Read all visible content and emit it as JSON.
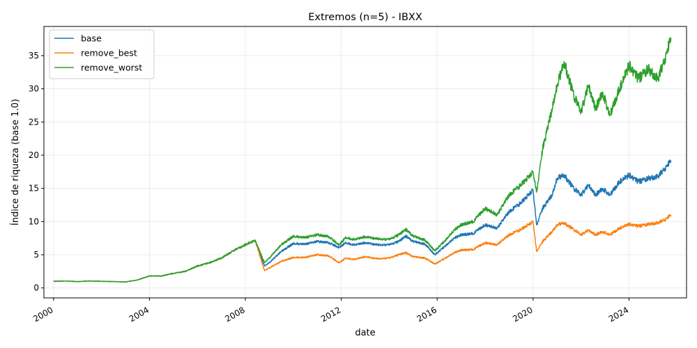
{
  "chart_data": {
    "type": "line",
    "title": "Extremos (n=5) - IBXX",
    "xlabel": "date",
    "ylabel": "Índice de riqueza (base 1.0)",
    "xlim": [
      1999.6,
      2026.4
    ],
    "ylim": [
      -1.5,
      39.4
    ],
    "xticks": [
      2000,
      2004,
      2008,
      2012,
      2016,
      2020,
      2024
    ],
    "xtick_labels": [
      "2000",
      "2004",
      "2008",
      "2012",
      "2016",
      "2020",
      "2024"
    ],
    "yticks": [
      0,
      5,
      10,
      15,
      20,
      25,
      30,
      35
    ],
    "ytick_labels": [
      "0",
      "5",
      "10",
      "15",
      "20",
      "25",
      "30",
      "35"
    ],
    "grid": true,
    "legend_position": "top-left",
    "series": [
      {
        "name": "base",
        "color": "#1f77b4",
        "points": [
          [
            2000.0,
            1.0
          ],
          [
            2000.5,
            1.05
          ],
          [
            2001.0,
            0.95
          ],
          [
            2001.5,
            1.05
          ],
          [
            2002.0,
            1.0
          ],
          [
            2002.5,
            0.95
          ],
          [
            2003.0,
            0.9
          ],
          [
            2003.5,
            1.2
          ],
          [
            2004.0,
            1.8
          ],
          [
            2004.5,
            1.8
          ],
          [
            2005.0,
            2.2
          ],
          [
            2005.5,
            2.5
          ],
          [
            2006.0,
            3.3
          ],
          [
            2006.5,
            3.8
          ],
          [
            2007.0,
            4.5
          ],
          [
            2007.5,
            5.6
          ],
          [
            2008.0,
            6.5
          ],
          [
            2008.4,
            7.2
          ],
          [
            2008.8,
            3.3
          ],
          [
            2009.0,
            3.8
          ],
          [
            2009.5,
            5.5
          ],
          [
            2010.0,
            6.7
          ],
          [
            2010.5,
            6.6
          ],
          [
            2011.0,
            7.0
          ],
          [
            2011.5,
            6.8
          ],
          [
            2011.9,
            6.1
          ],
          [
            2012.2,
            6.8
          ],
          [
            2012.5,
            6.5
          ],
          [
            2013.0,
            6.8
          ],
          [
            2013.5,
            6.5
          ],
          [
            2014.0,
            6.5
          ],
          [
            2014.4,
            7.0
          ],
          [
            2014.7,
            7.8
          ],
          [
            2015.0,
            7.0
          ],
          [
            2015.5,
            6.6
          ],
          [
            2015.9,
            5.0
          ],
          [
            2016.3,
            6.2
          ],
          [
            2016.7,
            7.5
          ],
          [
            2017.0,
            8.0
          ],
          [
            2017.5,
            8.2
          ],
          [
            2018.0,
            9.5
          ],
          [
            2018.5,
            9.0
          ],
          [
            2019.0,
            11.5
          ],
          [
            2019.5,
            12.8
          ],
          [
            2020.0,
            14.8
          ],
          [
            2020.15,
            9.5
          ],
          [
            2020.4,
            12.0
          ],
          [
            2020.8,
            14.0
          ],
          [
            2021.0,
            16.5
          ],
          [
            2021.3,
            17.0
          ],
          [
            2021.7,
            15.0
          ],
          [
            2022.0,
            14.0
          ],
          [
            2022.3,
            15.5
          ],
          [
            2022.6,
            14.0
          ],
          [
            2022.9,
            15.0
          ],
          [
            2023.2,
            14.0
          ],
          [
            2023.6,
            16.0
          ],
          [
            2024.0,
            17.0
          ],
          [
            2024.4,
            16.0
          ],
          [
            2024.8,
            16.5
          ],
          [
            2025.2,
            16.8
          ],
          [
            2025.5,
            18.0
          ],
          [
            2025.75,
            19.2
          ]
        ]
      },
      {
        "name": "remove_best",
        "color": "#ff7f0e",
        "points": [
          [
            2000.0,
            1.0
          ],
          [
            2000.5,
            1.05
          ],
          [
            2001.0,
            0.95
          ],
          [
            2001.5,
            1.05
          ],
          [
            2002.0,
            1.0
          ],
          [
            2002.5,
            0.95
          ],
          [
            2003.0,
            0.9
          ],
          [
            2003.5,
            1.2
          ],
          [
            2004.0,
            1.8
          ],
          [
            2004.5,
            1.8
          ],
          [
            2005.0,
            2.2
          ],
          [
            2005.5,
            2.5
          ],
          [
            2006.0,
            3.3
          ],
          [
            2006.5,
            3.8
          ],
          [
            2007.0,
            4.5
          ],
          [
            2007.5,
            5.6
          ],
          [
            2008.0,
            6.5
          ],
          [
            2008.4,
            7.2
          ],
          [
            2008.8,
            2.6
          ],
          [
            2009.0,
            3.0
          ],
          [
            2009.5,
            4.0
          ],
          [
            2010.0,
            4.6
          ],
          [
            2010.5,
            4.6
          ],
          [
            2011.0,
            5.0
          ],
          [
            2011.5,
            4.8
          ],
          [
            2011.9,
            3.8
          ],
          [
            2012.2,
            4.5
          ],
          [
            2012.5,
            4.3
          ],
          [
            2013.0,
            4.7
          ],
          [
            2013.5,
            4.4
          ],
          [
            2014.0,
            4.5
          ],
          [
            2014.4,
            5.0
          ],
          [
            2014.7,
            5.3
          ],
          [
            2015.0,
            4.7
          ],
          [
            2015.5,
            4.5
          ],
          [
            2015.9,
            3.6
          ],
          [
            2016.3,
            4.4
          ],
          [
            2016.7,
            5.3
          ],
          [
            2017.0,
            5.7
          ],
          [
            2017.5,
            5.8
          ],
          [
            2018.0,
            6.8
          ],
          [
            2018.5,
            6.5
          ],
          [
            2019.0,
            8.0
          ],
          [
            2019.5,
            8.8
          ],
          [
            2020.0,
            10.0
          ],
          [
            2020.15,
            5.5
          ],
          [
            2020.4,
            7.0
          ],
          [
            2020.8,
            8.5
          ],
          [
            2021.0,
            9.5
          ],
          [
            2021.3,
            9.8
          ],
          [
            2021.7,
            8.8
          ],
          [
            2022.0,
            8.0
          ],
          [
            2022.3,
            8.7
          ],
          [
            2022.6,
            8.0
          ],
          [
            2022.9,
            8.5
          ],
          [
            2023.2,
            8.0
          ],
          [
            2023.6,
            9.0
          ],
          [
            2024.0,
            9.6
          ],
          [
            2024.4,
            9.3
          ],
          [
            2024.8,
            9.6
          ],
          [
            2025.2,
            9.8
          ],
          [
            2025.5,
            10.3
          ],
          [
            2025.75,
            11.0
          ]
        ]
      },
      {
        "name": "remove_worst",
        "color": "#2ca02c",
        "points": [
          [
            2000.0,
            1.0
          ],
          [
            2000.5,
            1.05
          ],
          [
            2001.0,
            0.95
          ],
          [
            2001.5,
            1.05
          ],
          [
            2002.0,
            1.0
          ],
          [
            2002.5,
            0.95
          ],
          [
            2003.0,
            0.9
          ],
          [
            2003.5,
            1.2
          ],
          [
            2004.0,
            1.8
          ],
          [
            2004.5,
            1.8
          ],
          [
            2005.0,
            2.2
          ],
          [
            2005.5,
            2.5
          ],
          [
            2006.0,
            3.3
          ],
          [
            2006.5,
            3.8
          ],
          [
            2007.0,
            4.5
          ],
          [
            2007.5,
            5.6
          ],
          [
            2008.0,
            6.5
          ],
          [
            2008.4,
            7.2
          ],
          [
            2008.8,
            3.8
          ],
          [
            2009.0,
            4.5
          ],
          [
            2009.5,
            6.5
          ],
          [
            2010.0,
            7.8
          ],
          [
            2010.5,
            7.6
          ],
          [
            2011.0,
            8.0
          ],
          [
            2011.5,
            7.7
          ],
          [
            2011.9,
            6.5
          ],
          [
            2012.2,
            7.6
          ],
          [
            2012.5,
            7.3
          ],
          [
            2013.0,
            7.7
          ],
          [
            2013.5,
            7.4
          ],
          [
            2014.0,
            7.3
          ],
          [
            2014.4,
            8.0
          ],
          [
            2014.7,
            8.8
          ],
          [
            2015.0,
            7.8
          ],
          [
            2015.5,
            7.2
          ],
          [
            2015.9,
            5.6
          ],
          [
            2016.3,
            7.0
          ],
          [
            2016.7,
            8.7
          ],
          [
            2017.0,
            9.5
          ],
          [
            2017.5,
            10.0
          ],
          [
            2018.0,
            12.0
          ],
          [
            2018.5,
            11.0
          ],
          [
            2019.0,
            14.0
          ],
          [
            2019.5,
            15.5
          ],
          [
            2020.0,
            17.5
          ],
          [
            2020.15,
            14.5
          ],
          [
            2020.4,
            21.0
          ],
          [
            2020.8,
            27.0
          ],
          [
            2021.0,
            30.5
          ],
          [
            2021.3,
            34.0
          ],
          [
            2021.7,
            29.0
          ],
          [
            2022.0,
            26.5
          ],
          [
            2022.3,
            30.5
          ],
          [
            2022.6,
            27.0
          ],
          [
            2022.9,
            29.5
          ],
          [
            2023.2,
            26.0
          ],
          [
            2023.6,
            30.0
          ],
          [
            2024.0,
            33.5
          ],
          [
            2024.4,
            31.5
          ],
          [
            2024.8,
            33.0
          ],
          [
            2025.2,
            31.5
          ],
          [
            2025.5,
            34.5
          ],
          [
            2025.75,
            37.7
          ]
        ]
      }
    ]
  }
}
